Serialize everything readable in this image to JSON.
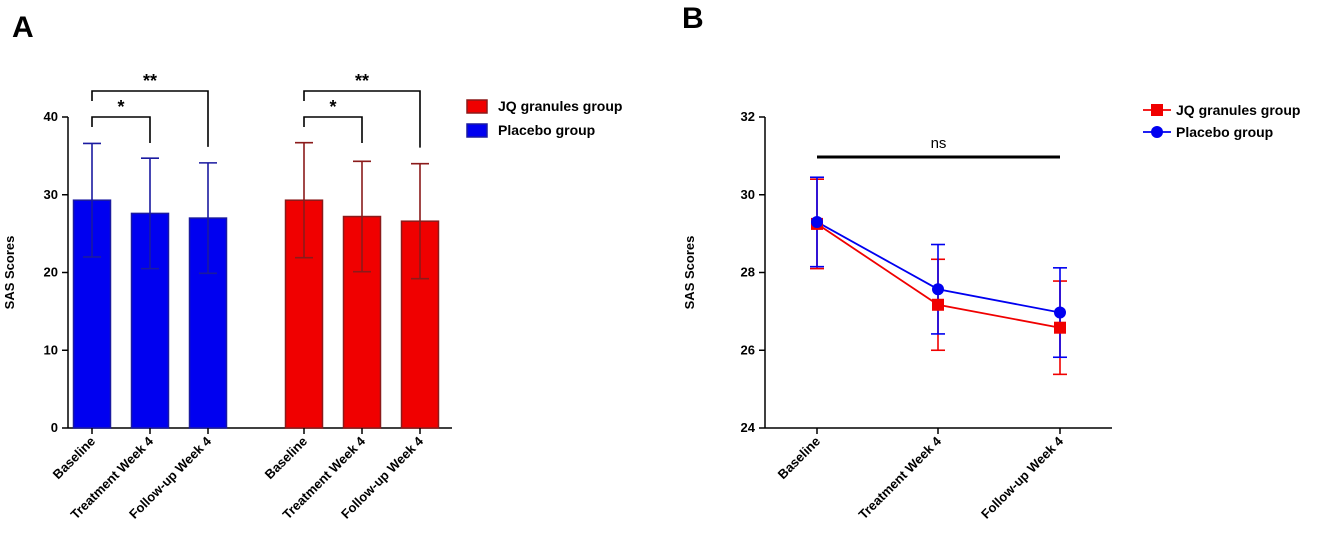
{
  "chart_data": [
    {
      "panel": "A",
      "type": "bar",
      "ylabel": "SAS Scores",
      "ylim": [
        0,
        40
      ],
      "yticks": [
        "0",
        "10",
        "20",
        "30",
        "40"
      ],
      "categories": [
        "Baseline",
        "Treatment Week 4",
        "Follow-up Week 4"
      ],
      "legend_position": "top-right",
      "series": [
        {
          "name": "Placebo group",
          "legend_label": "Placebo group",
          "color": "#0000f0",
          "error_color": "#1a1aa0",
          "values": [
            29.3,
            27.6,
            27.0
          ],
          "errors": [
            7.3,
            7.1,
            7.1
          ]
        },
        {
          "name": "JQ granules group",
          "legend_label": "JQ granules group",
          "color": "#f00000",
          "error_color": "#8b1a1a",
          "values": [
            29.3,
            27.2,
            26.6
          ],
          "errors": [
            7.4,
            7.1,
            7.4
          ]
        }
      ],
      "annotations": [
        {
          "group": "Placebo group",
          "from": "Baseline",
          "to": "Treatment Week 4",
          "label": "*"
        },
        {
          "group": "Placebo group",
          "from": "Baseline",
          "to": "Follow-up Week 4",
          "label": "**"
        },
        {
          "group": "JQ granules group",
          "from": "Baseline",
          "to": "Treatment Week 4",
          "label": "*"
        },
        {
          "group": "JQ granules group",
          "from": "Baseline",
          "to": "Follow-up Week 4",
          "label": "**"
        }
      ]
    },
    {
      "panel": "B",
      "type": "line",
      "ylabel": "SAS Scores",
      "ylim": [
        24,
        32
      ],
      "yticks": [
        "24",
        "26",
        "28",
        "30",
        "32"
      ],
      "categories": [
        "Baseline",
        "Treatment Week 4",
        "Follow-up Week 4"
      ],
      "legend_position": "top-right",
      "series": [
        {
          "name": "JQ granules group",
          "legend_label": "JQ granules group",
          "color": "#f00000",
          "marker": "square",
          "values": [
            29.25,
            27.17,
            26.58
          ],
          "errors": [
            1.15,
            1.17,
            1.2
          ]
        },
        {
          "name": "Placebo group",
          "legend_label": "Placebo group",
          "color": "#0000f0",
          "marker": "circle",
          "values": [
            29.3,
            27.57,
            26.97
          ],
          "errors": [
            1.15,
            1.15,
            1.15
          ]
        }
      ],
      "annotations": [
        {
          "from": "Baseline",
          "to": "Follow-up Week 4",
          "label": "ns"
        }
      ]
    }
  ]
}
